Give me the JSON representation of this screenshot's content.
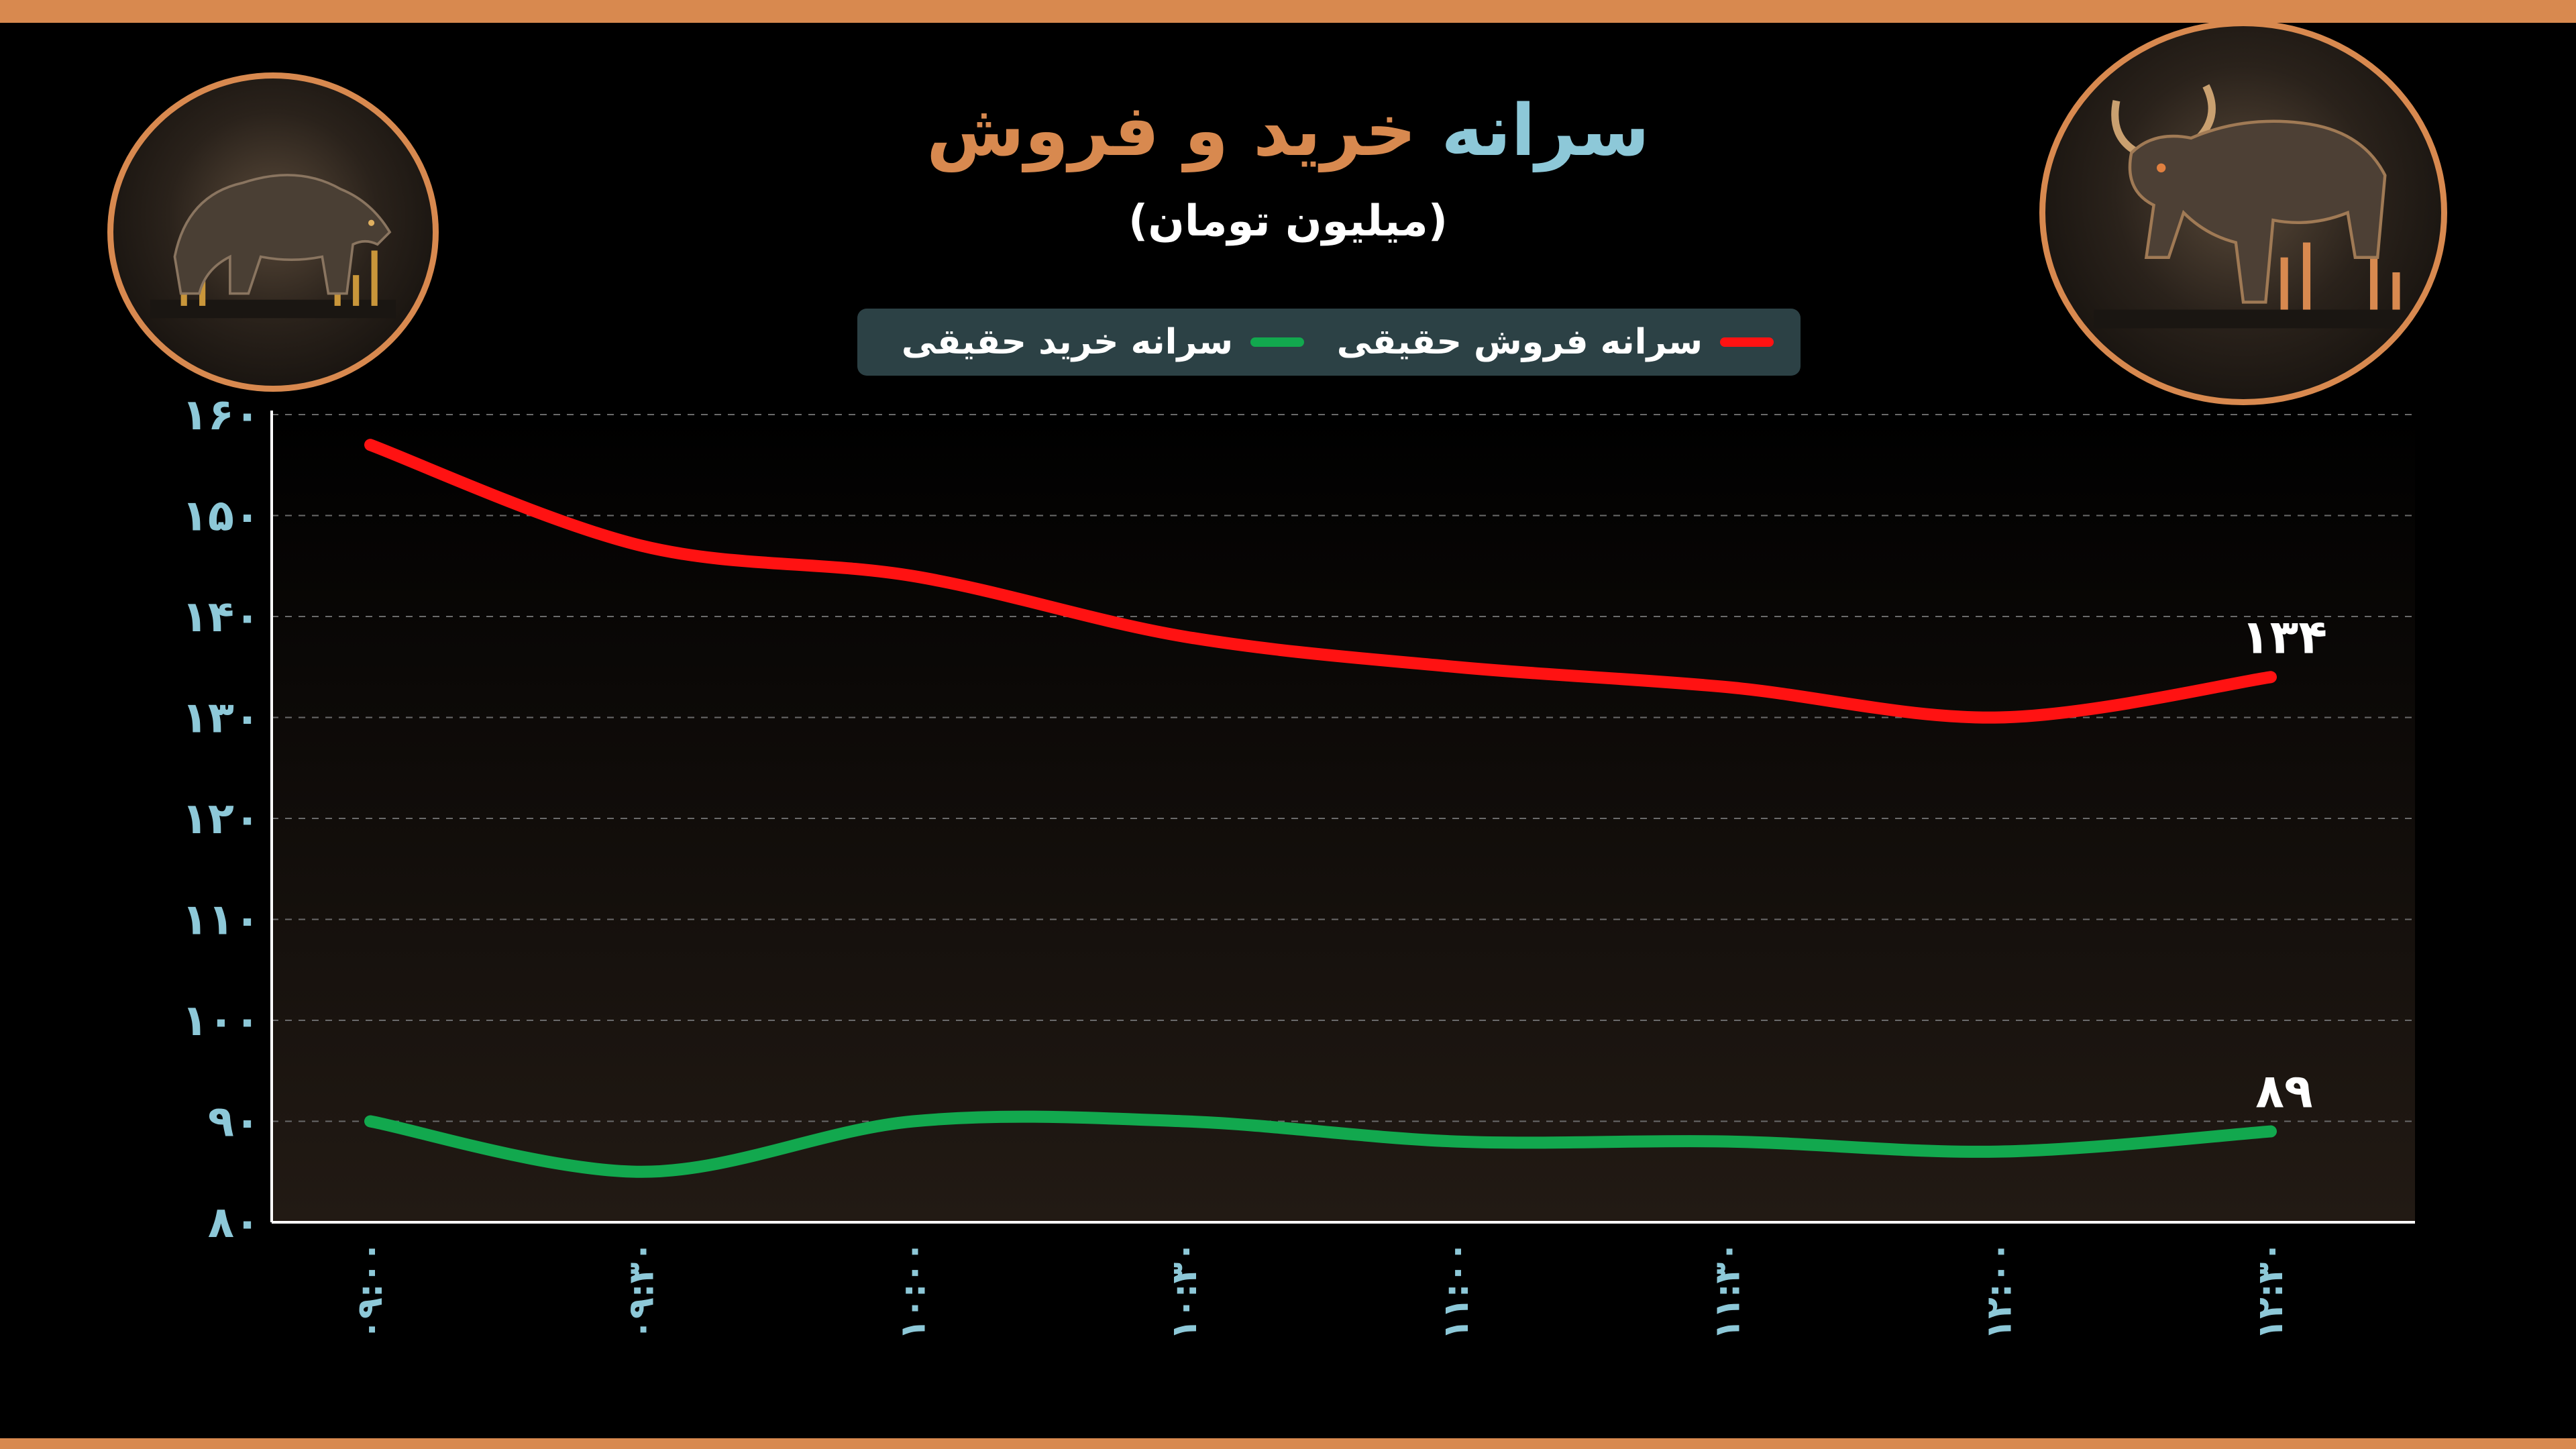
{
  "title": {
    "part1": "سرانه",
    "part2": "خرید و فروش"
  },
  "subtitle": "(میلیون تومان)",
  "legend": {
    "sell_label": "سرانه فروش حقیقی",
    "buy_label": "سرانه خرید حقیقی"
  },
  "colors": {
    "sell": "#ff1212",
    "buy": "#12a84e",
    "axis_text": "#8dc8d8",
    "accent": "#d8894f",
    "legend_bg": "#2c4145"
  },
  "icons": {
    "left": "bear-icon",
    "right": "bull-icon"
  },
  "chart_data": {
    "type": "line",
    "title": "سرانه خرید و فروش",
    "ylabel": "(میلیون تومان)",
    "categories": [
      "۰۹:۰۰",
      "۰۹:۳۰",
      "۱۰:۰۰",
      "۱۰:۳۰",
      "۱۱:۰۰",
      "۱۱:۳۰",
      "۱۲:۰۰",
      "۱۲:۳۰"
    ],
    "ylim": [
      80,
      160
    ],
    "yticks": [
      80,
      90,
      100,
      110,
      120,
      130,
      140,
      150,
      160
    ],
    "ytick_labels": [
      "۸۰",
      "۹۰",
      "۱۰۰",
      "۱۱۰",
      "۱۲۰",
      "۱۳۰",
      "۱۴۰",
      "۱۵۰",
      "۱۶۰"
    ],
    "grid": true,
    "legend_position": "top-center",
    "series": [
      {
        "name": "سرانه فروش حقیقی",
        "color": "#ff1212",
        "values": [
          157,
          147,
          144,
          138,
          135,
          133,
          130,
          134
        ],
        "end_label": "۱۳۴"
      },
      {
        "name": "سرانه خرید حقیقی",
        "color": "#12a84e",
        "values": [
          90,
          85,
          90,
          90,
          88,
          88,
          87,
          89
        ],
        "end_label": "۸۹"
      }
    ]
  }
}
